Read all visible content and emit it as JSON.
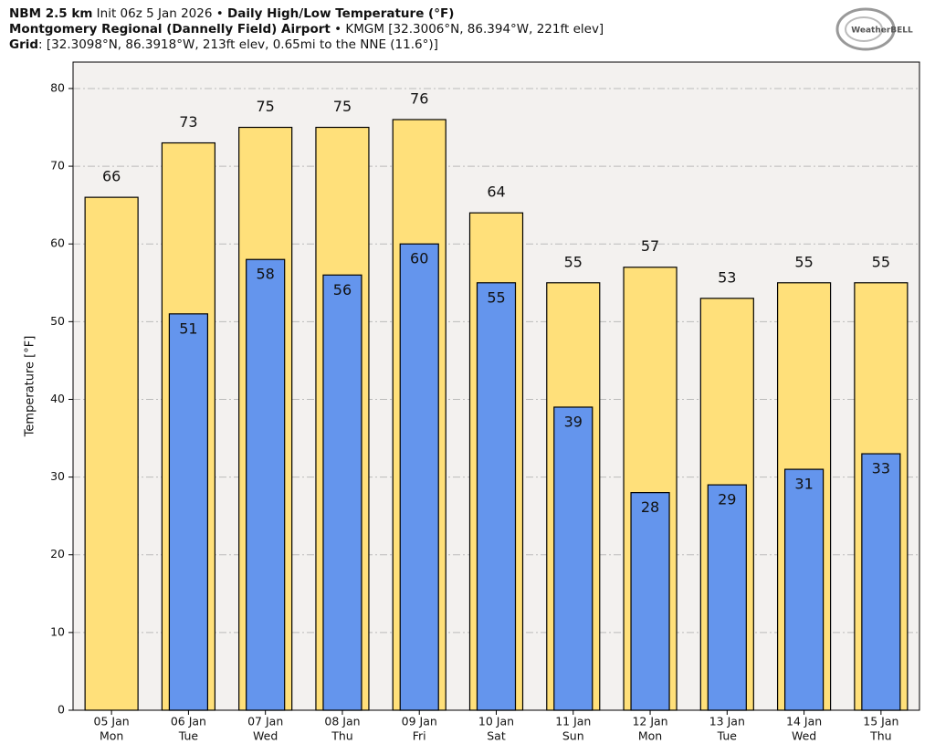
{
  "chart_data": {
    "type": "bar",
    "title_lines": [
      [
        {
          "text": "NBM 2.5 km",
          "bold": true
        },
        {
          "text": " Init 06z 5 Jan 2026 • ",
          "bold": false
        },
        {
          "text": "Daily High/Low Temperature (°F)",
          "bold": true
        }
      ],
      [
        {
          "text": "Montgomery Regional (Dannelly Field) Airport",
          "bold": true
        },
        {
          "text": " • KMGM [32.3006°N, 86.394°W, 221ft elev]",
          "bold": false
        }
      ],
      [
        {
          "text": "Grid",
          "bold": true
        },
        {
          "text": ": [32.3098°N, 86.3918°W, 213ft elev, 0.65mi to the NNE (11.6°)]",
          "bold": false
        }
      ]
    ],
    "logo": "WeatherBELL",
    "ylabel": "Temperature [°F]",
    "categories": [
      "05 Jan",
      "06 Jan",
      "07 Jan",
      "08 Jan",
      "09 Jan",
      "10 Jan",
      "11 Jan",
      "12 Jan",
      "13 Jan",
      "14 Jan",
      "15 Jan"
    ],
    "weekdays": [
      "Mon",
      "Tue",
      "Wed",
      "Thu",
      "Fri",
      "Sat",
      "Sun",
      "Mon",
      "Tue",
      "Wed",
      "Thu"
    ],
    "series": [
      {
        "name": "High",
        "color": "#ffe07a",
        "values": [
          66,
          73,
          75,
          75,
          76,
          64,
          55,
          57,
          53,
          55,
          55
        ]
      },
      {
        "name": "Low",
        "color": "#6495ed",
        "values": [
          null,
          51,
          58,
          56,
          60,
          55,
          39,
          28,
          29,
          31,
          33
        ]
      }
    ],
    "ylim": [
      0,
      83.4
    ],
    "yticks": [
      0,
      10,
      20,
      30,
      40,
      50,
      60,
      70,
      80
    ],
    "grid": true
  }
}
